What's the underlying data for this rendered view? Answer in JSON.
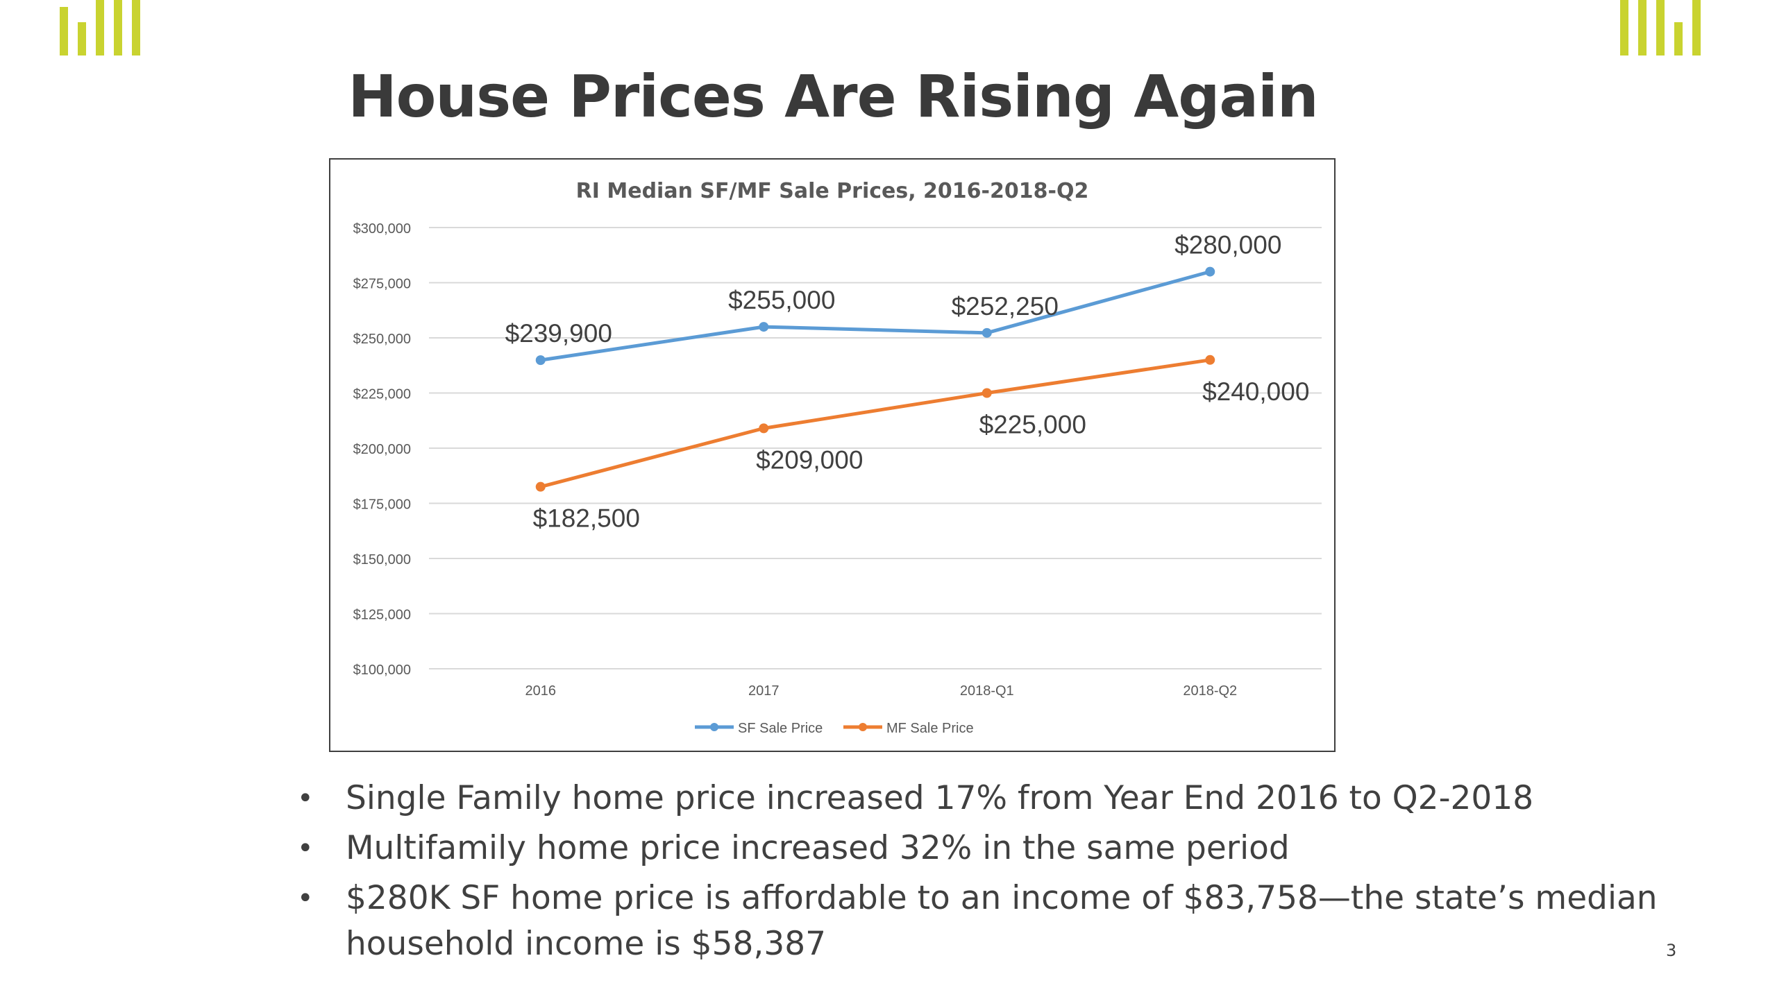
{
  "slide": {
    "title": "House Prices Are Rising Again",
    "page_number": "3",
    "brand_color": "#c9d330"
  },
  "bullets": [
    "Single Family home price increased 17% from Year End 2016 to Q2-2018",
    "Multifamily home price increased 32% in the same period",
    "$280K SF home price is affordable to an income of $83,758—the state’s median household income is $58,387"
  ],
  "chart_data": {
    "type": "line",
    "title": "RI Median SF/MF Sale Prices, 2016-2018-Q2",
    "categories": [
      "2016",
      "2017",
      "2018-Q1",
      "2018-Q2"
    ],
    "ylim": [
      100000,
      300000
    ],
    "yticks": [
      100000,
      125000,
      150000,
      175000,
      200000,
      225000,
      250000,
      275000,
      300000
    ],
    "ytick_labels": [
      "$100,000",
      "$125,000",
      "$150,000",
      "$175,000",
      "$200,000",
      "$225,000",
      "$250,000",
      "$275,000",
      "$300,000"
    ],
    "grid": true,
    "legend_position": "bottom",
    "series": [
      {
        "name": "SF Sale Price",
        "color": "#5b9bd5",
        "values": [
          239900,
          255000,
          252250,
          280000
        ],
        "data_labels": [
          "$239,900",
          "$255,000",
          "$252,250",
          "$280,000"
        ],
        "label_position": "above"
      },
      {
        "name": "MF Sale Price",
        "color": "#ed7d31",
        "values": [
          182500,
          209000,
          225000,
          240000
        ],
        "data_labels": [
          "$182,500",
          "$209,000",
          "$225,000",
          "$240,000"
        ],
        "label_position": "below"
      }
    ]
  }
}
